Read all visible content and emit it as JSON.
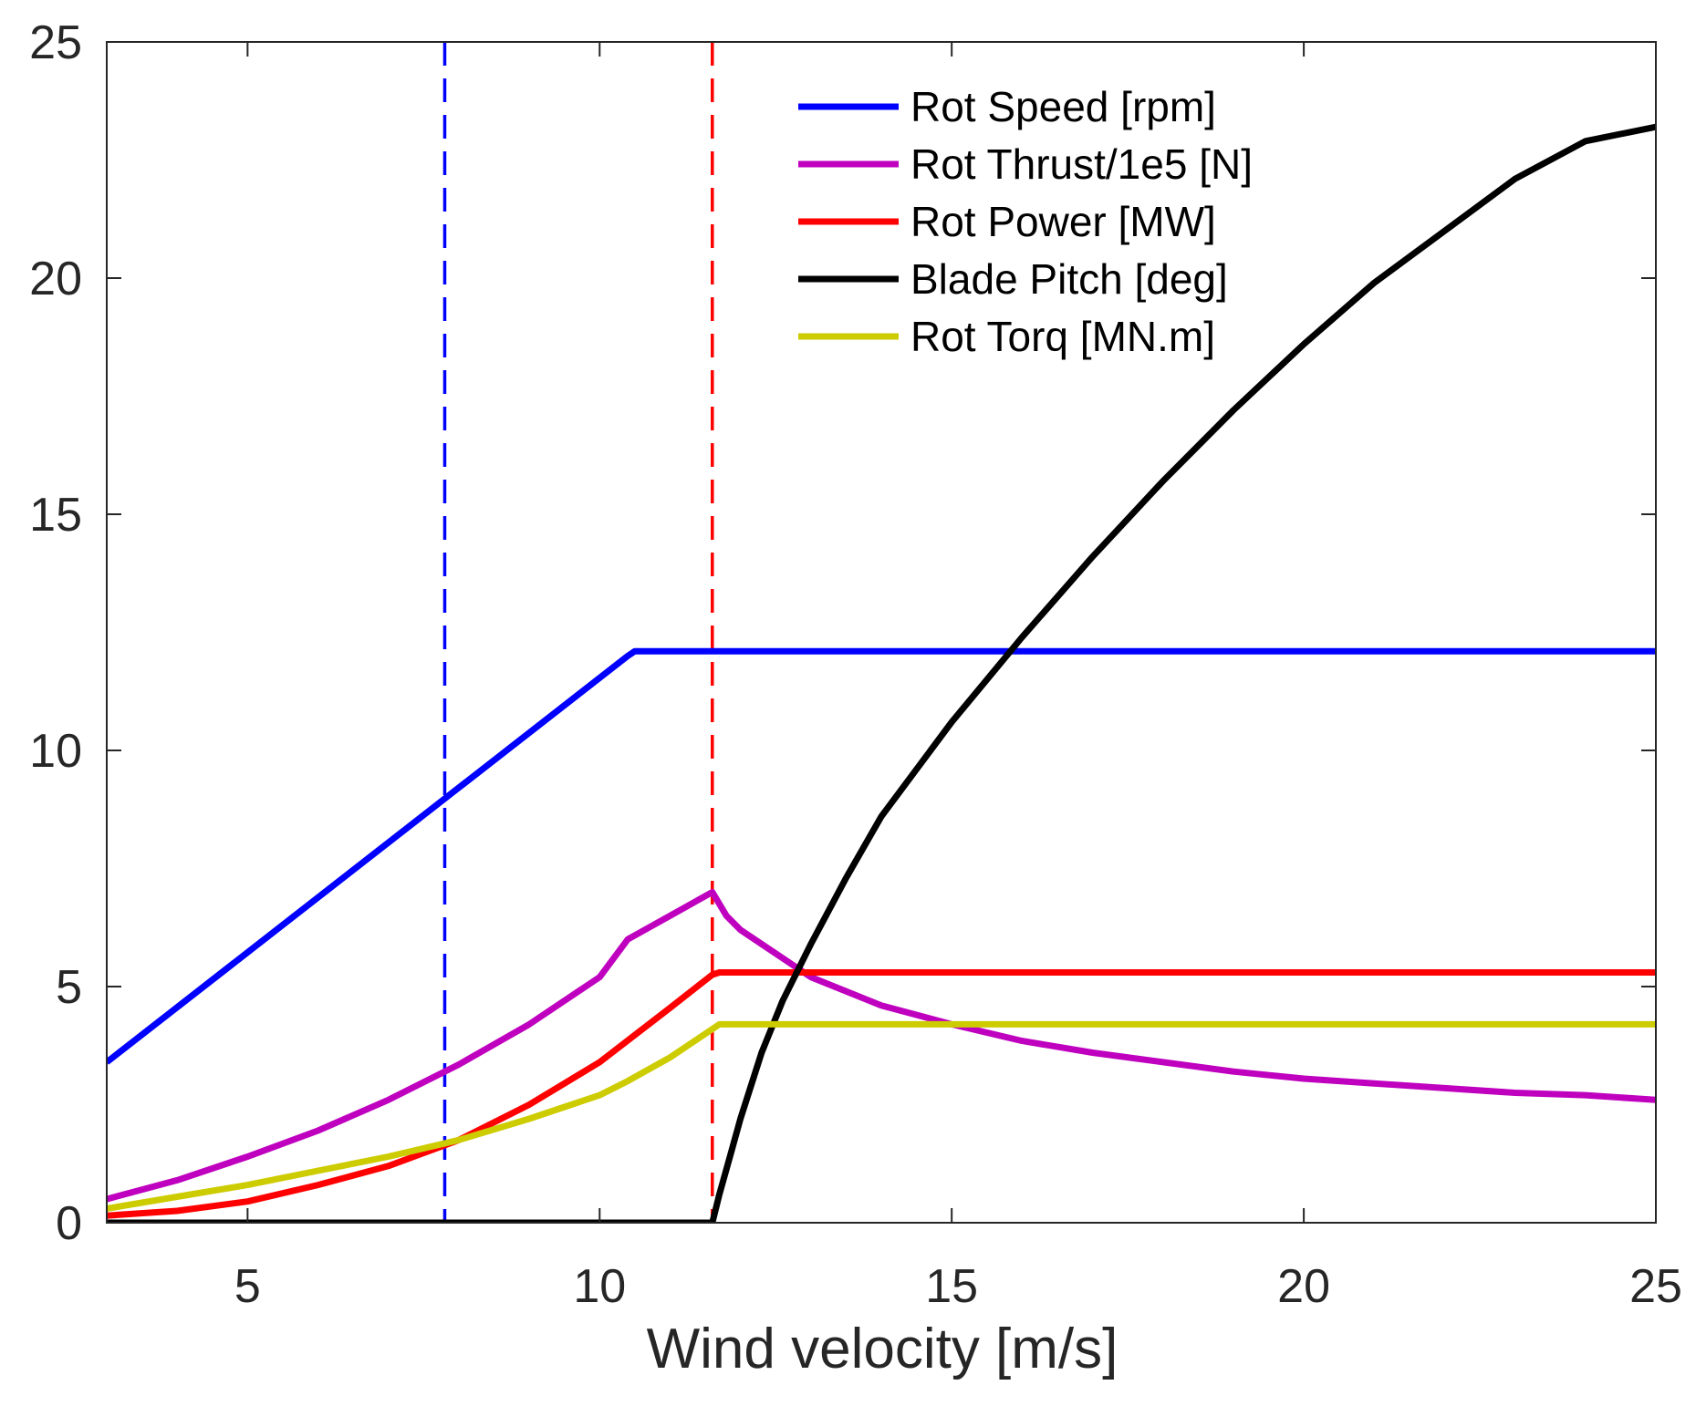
{
  "chart_data": {
    "type": "line",
    "title": "",
    "xlabel": "Wind velocity [m/s]",
    "ylabel": "",
    "xlim": [
      3,
      25
    ],
    "ylim": [
      0,
      25
    ],
    "xticks": [
      5,
      10,
      15,
      20,
      25
    ],
    "yticks": [
      0,
      5,
      10,
      15,
      20,
      25
    ],
    "grid": false,
    "legend_position": "top-right",
    "vertical_lines": [
      {
        "x": 7.8,
        "color": "#0000ff",
        "style": "dashed"
      },
      {
        "x": 11.6,
        "color": "#ff0000",
        "style": "dashed"
      }
    ],
    "series": [
      {
        "name": "Rot Speed [rpm]",
        "color": "#0000ff",
        "x": [
          3,
          10.4,
          10.5,
          25
        ],
        "y": [
          3.4,
          12.0,
          12.1,
          12.1
        ]
      },
      {
        "name": "Rot Thrust/1e5 [N]",
        "color": "#bf00bf",
        "x": [
          3,
          4,
          5,
          6,
          7,
          8,
          9,
          10,
          10.4,
          11,
          11.6,
          11.8,
          12,
          12.5,
          13,
          14,
          15,
          16,
          17,
          18,
          19,
          20,
          21,
          22,
          23,
          24,
          25
        ],
        "y": [
          0.5,
          0.9,
          1.4,
          1.95,
          2.6,
          3.35,
          4.2,
          5.2,
          6.0,
          6.5,
          7.0,
          6.5,
          6.2,
          5.7,
          5.2,
          4.6,
          4.2,
          3.85,
          3.6,
          3.4,
          3.2,
          3.05,
          2.95,
          2.85,
          2.75,
          2.7,
          2.6
        ]
      },
      {
        "name": "Rot Power [MW]",
        "color": "#ff0000",
        "x": [
          3,
          4,
          5,
          6,
          7,
          8,
          9,
          10,
          11,
          11.6,
          11.7,
          25
        ],
        "y": [
          0.15,
          0.25,
          0.45,
          0.8,
          1.2,
          1.75,
          2.5,
          3.4,
          4.55,
          5.25,
          5.3,
          5.3
        ]
      },
      {
        "name": "Blade Pitch [deg]",
        "color": "#000000",
        "x": [
          3,
          11.6,
          11.7,
          11.85,
          12,
          12.3,
          12.6,
          13,
          13.5,
          14,
          15,
          16,
          17,
          18,
          19,
          20,
          21,
          22,
          23,
          24,
          25
        ],
        "y": [
          0,
          0,
          0.6,
          1.4,
          2.2,
          3.6,
          4.7,
          5.9,
          7.3,
          8.6,
          10.6,
          12.4,
          14.1,
          15.7,
          17.2,
          18.6,
          19.9,
          21.0,
          22.1,
          22.9,
          23.2
        ]
      },
      {
        "name": "Rot Torq [MN.m]",
        "color": "#cccc00",
        "x": [
          3,
          4,
          5,
          6,
          7,
          8,
          9,
          10,
          10.4,
          11,
          11.6,
          11.7,
          25
        ],
        "y": [
          0.3,
          0.55,
          0.8,
          1.1,
          1.4,
          1.75,
          2.2,
          2.7,
          3.0,
          3.5,
          4.1,
          4.2,
          4.2
        ]
      }
    ]
  }
}
